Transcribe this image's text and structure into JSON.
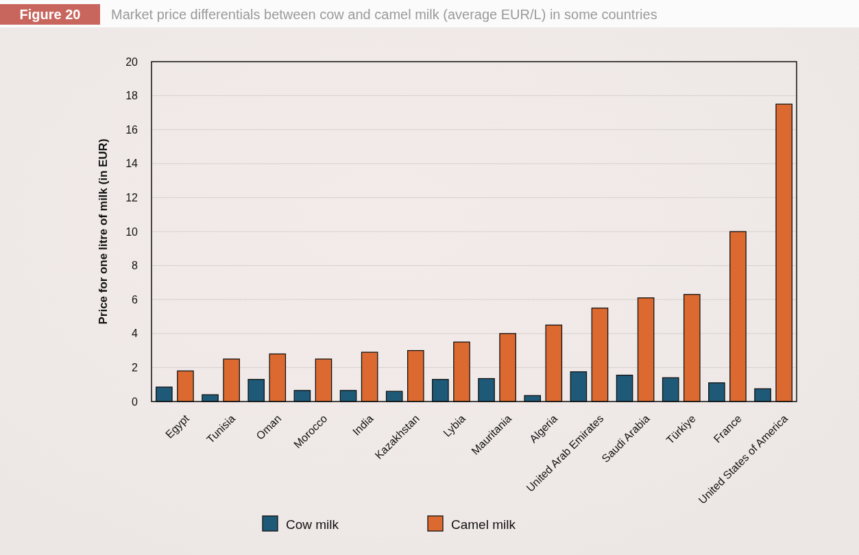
{
  "chart_data": {
    "type": "bar",
    "title": "Market price differentials between cow and camel milk (average EUR/L) in some countries",
    "annotations": [
      "Figure 20"
    ],
    "ylabel": "Price for one litre of milk (in EUR)",
    "categories": [
      "Egypt",
      "Tunisia",
      "Oman",
      "Morocco",
      "India",
      "Kazakhstan",
      "Lybia",
      "Mauritania",
      "Algeria",
      "United Arab Emirates",
      "Saudi Arabia",
      "Türkiye",
      "France",
      "United States of America"
    ],
    "series": [
      {
        "name": "Cow milk",
        "color": "#1e5a78",
        "values": [
          0.85,
          0.4,
          1.3,
          0.65,
          0.65,
          0.6,
          1.3,
          1.35,
          0.35,
          1.75,
          1.55,
          1.4,
          1.1,
          0.75
        ]
      },
      {
        "name": "Camel milk",
        "color": "#dc6a30",
        "values": [
          1.8,
          2.5,
          2.8,
          2.5,
          2.9,
          3.0,
          3.5,
          4.0,
          4.5,
          5.5,
          6.1,
          6.3,
          10,
          17.5
        ]
      }
    ],
    "ylim": [
      0,
      20
    ],
    "yticks": [
      0,
      2,
      4,
      6,
      8,
      10,
      12,
      14,
      16,
      18,
      20
    ],
    "grid": "y",
    "legend": "bottom"
  }
}
